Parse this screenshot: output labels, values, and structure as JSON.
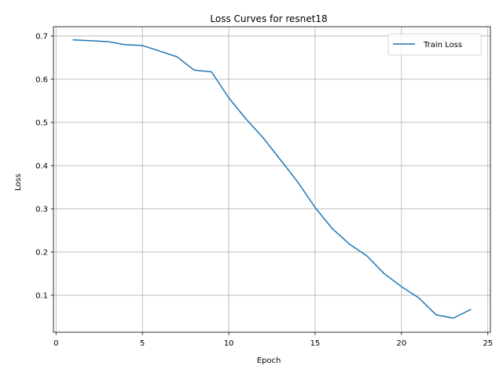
{
  "chart_data": {
    "type": "line",
    "title": "Loss Curves for resnet18",
    "xlabel": "Epoch",
    "ylabel": "Loss",
    "xlim": [
      -0.15,
      25.15
    ],
    "ylim": [
      0.0145,
      0.7215
    ],
    "xticks": [
      0,
      5,
      10,
      15,
      20,
      25
    ],
    "yticks": [
      0.1,
      0.2,
      0.3,
      0.4,
      0.5,
      0.6,
      0.7
    ],
    "grid": true,
    "legend_position": "top-right",
    "series": [
      {
        "name": "Train Loss",
        "color": "#1f77b4",
        "x": [
          1,
          2,
          3,
          4,
          5,
          6,
          7,
          8,
          9,
          10,
          11,
          12,
          13,
          14,
          15,
          16,
          17,
          18,
          19,
          20,
          21,
          22,
          23,
          24
        ],
        "y": [
          0.691,
          0.689,
          0.687,
          0.68,
          0.678,
          0.665,
          0.652,
          0.621,
          0.617,
          0.557,
          0.508,
          0.464,
          0.413,
          0.362,
          0.303,
          0.254,
          0.218,
          0.191,
          0.15,
          0.12,
          0.094,
          0.055,
          0.047,
          0.067
        ]
      }
    ]
  }
}
